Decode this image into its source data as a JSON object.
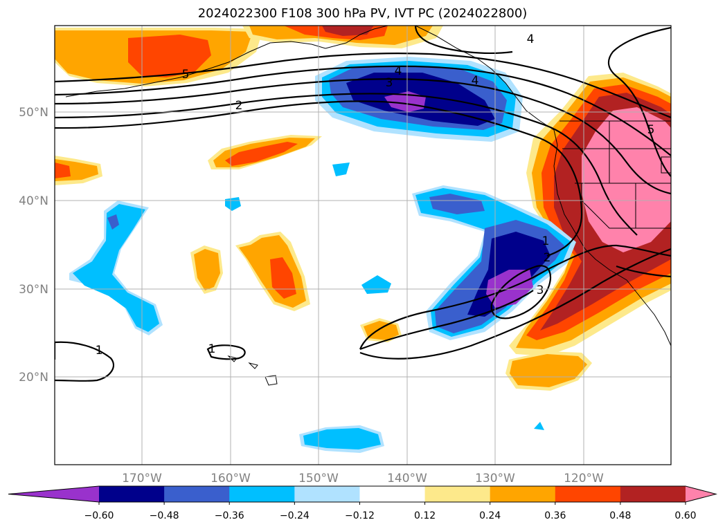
{
  "title": "2024022300 F108 300 hPa PV, IVT PC (2024022800)",
  "lat_ticks": [
    "50°N",
    "40°N",
    "30°N",
    "20°N"
  ],
  "lon_ticks": [
    "170°W",
    "160°W",
    "150°W",
    "140°W",
    "130°W",
    "120°W"
  ],
  "colorbar": {
    "levels": [
      "−0.60",
      "−0.48",
      "−0.36",
      "−0.24",
      "−0.12",
      "0.12",
      "0.24",
      "0.36",
      "0.48",
      "0.60"
    ],
    "colors": [
      "#9932cc",
      "#00008b",
      "#3a5fcd",
      "#00bfff",
      "#b0e2ff",
      "#ffffff",
      "#fde98b",
      "#ffa500",
      "#ff4500",
      "#b22222",
      "#ff82ab"
    ]
  },
  "contour_labels": [
    "4",
    "4",
    "5",
    "3",
    "4",
    "2",
    "1",
    "2",
    "3",
    "1",
    "1",
    "5"
  ]
}
